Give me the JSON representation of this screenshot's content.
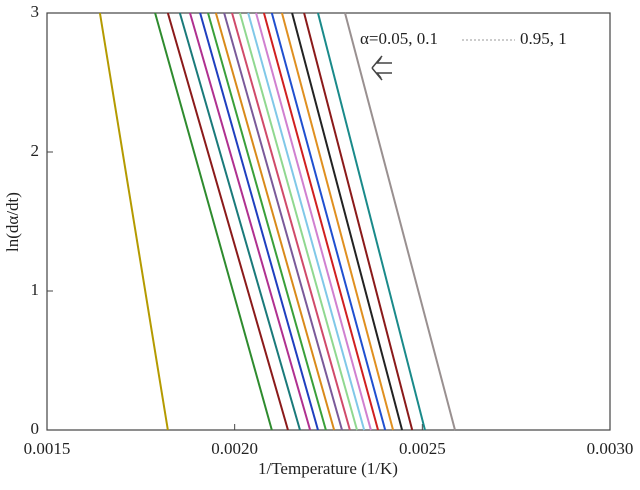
{
  "chart_data": {
    "type": "line",
    "x_label": "1/Temperature (1/K)",
    "y_label": "ln(dα/dt)",
    "annotations": [
      "α=0.05, 0.1",
      "0.95, 1"
    ],
    "xlim": [
      0.0015,
      0.003
    ],
    "ylim": [
      0,
      3
    ],
    "xticks": [
      {
        "value": 0.0015,
        "label": "0.0015"
      },
      {
        "value": 0.002,
        "label": "0.0020"
      },
      {
        "value": 0.0025,
        "label": "0.0025"
      },
      {
        "value": 0.003,
        "label": "0.0030"
      }
    ],
    "yticks": [
      0,
      1,
      2,
      3
    ],
    "series": [
      {
        "color": "#b49a00",
        "x": [
          0.001641,
          0.001822
        ],
        "values": [
          3,
          0
        ]
      },
      {
        "color": "#2e8b2e",
        "x": [
          0.001788,
          0.002099
        ],
        "values": [
          3,
          0
        ]
      },
      {
        "color": "#8b1a1a",
        "x": [
          0.001822,
          0.002142
        ],
        "values": [
          3,
          0
        ]
      },
      {
        "color": "#1a7a7a",
        "x": [
          0.001854,
          0.002174
        ],
        "values": [
          3,
          0
        ]
      },
      {
        "color": "#b03090",
        "x": [
          0.001881,
          0.002201
        ],
        "values": [
          3,
          0
        ]
      },
      {
        "color": "#1f3fbf",
        "x": [
          0.001908,
          0.002222
        ],
        "values": [
          3,
          0
        ]
      },
      {
        "color": "#3aa03a",
        "x": [
          0.001929,
          0.002243
        ],
        "values": [
          3,
          0
        ]
      },
      {
        "color": "#d98a1a",
        "x": [
          0.00195,
          0.002265
        ],
        "values": [
          3,
          0
        ]
      },
      {
        "color": "#7a5a9a",
        "x": [
          0.001972,
          0.002286
        ],
        "values": [
          3,
          0
        ]
      },
      {
        "color": "#d04a6a",
        "x": [
          0.001993,
          0.002307
        ],
        "values": [
          3,
          0
        ]
      },
      {
        "color": "#90d890",
        "x": [
          0.002014,
          0.002326
        ],
        "values": [
          3,
          0
        ]
      },
      {
        "color": "#80c8e8",
        "x": [
          0.002036,
          0.002345
        ],
        "values": [
          3,
          0
        ]
      },
      {
        "color": "#d080d0",
        "x": [
          0.002057,
          0.002363
        ],
        "values": [
          3,
          0
        ]
      },
      {
        "color": "#d02020",
        "x": [
          0.002078,
          0.002382
        ],
        "values": [
          3,
          0
        ]
      },
      {
        "color": "#2050d0",
        "x": [
          0.002099,
          0.002401
        ],
        "values": [
          3,
          0
        ]
      },
      {
        "color": "#e09020",
        "x": [
          0.002126,
          0.002422
        ],
        "values": [
          3,
          0
        ]
      },
      {
        "color": "#222222",
        "x": [
          0.002153,
          0.002446
        ],
        "values": [
          3,
          0
        ]
      },
      {
        "color": "#8b1a1a",
        "x": [
          0.002185,
          0.002473
        ],
        "values": [
          3,
          0
        ]
      },
      {
        "color": "#1a8a8a",
        "x": [
          0.002222,
          0.002507
        ],
        "values": [
          3,
          0
        ]
      },
      {
        "color": "#999090",
        "x": [
          0.002294,
          0.002587
        ],
        "values": [
          3,
          0
        ]
      }
    ]
  }
}
